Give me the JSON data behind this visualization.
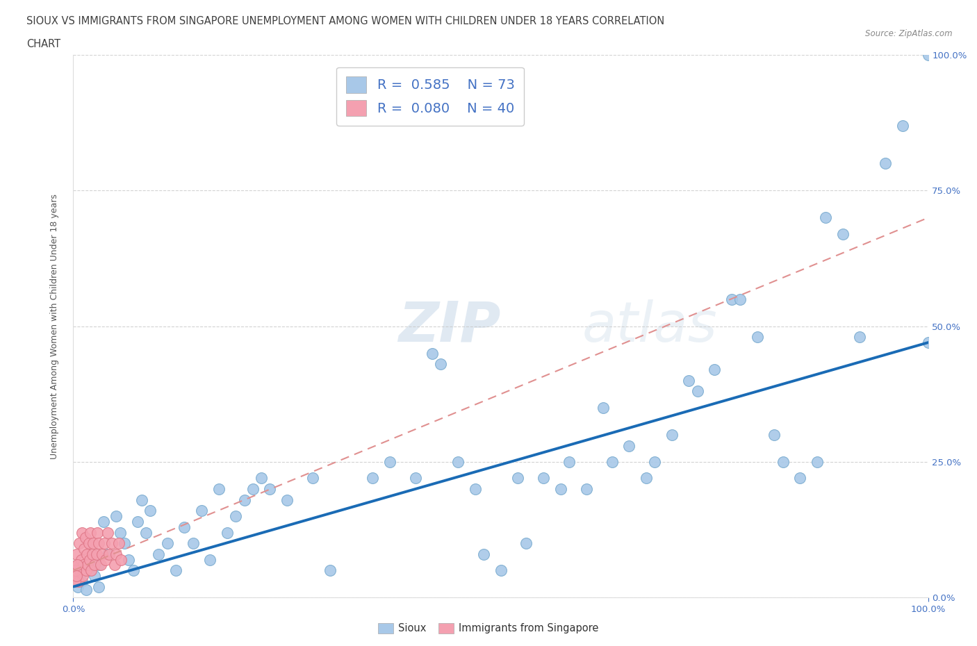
{
  "title_line1": "SIOUX VS IMMIGRANTS FROM SINGAPORE UNEMPLOYMENT AMONG WOMEN WITH CHILDREN UNDER 18 YEARS CORRELATION",
  "title_line2": "CHART",
  "source_text": "Source: ZipAtlas.com",
  "ylabel": "Unemployment Among Women with Children Under 18 years",
  "watermark_zip": "ZIP",
  "watermark_atlas": "atlas",
  "legend_labels": [
    "Sioux",
    "Immigrants from Singapore"
  ],
  "R_sioux": 0.585,
  "N_sioux": 73,
  "R_singapore": 0.08,
  "N_singapore": 40,
  "sioux_color": "#a8c8e8",
  "singapore_color": "#f4a0b0",
  "sioux_line_color": "#1a6bb5",
  "singapore_line_color": "#d4708080",
  "background_color": "#ffffff",
  "grid_color": "#c8c8c8",
  "axis_label_color": "#4472c4",
  "title_color": "#404040",
  "sioux_x": [
    0.5,
    1.0,
    1.5,
    2.0,
    2.5,
    3.0,
    4.0,
    5.0,
    5.5,
    6.0,
    7.0,
    8.0,
    9.0,
    10.0,
    11.0,
    12.0,
    13.0,
    14.0,
    15.0,
    16.0,
    17.0,
    18.0,
    20.0,
    21.0,
    22.0,
    23.0,
    25.0,
    28.0,
    30.0,
    35.0,
    37.0,
    40.0,
    42.0,
    43.0,
    45.0,
    47.0,
    48.0,
    50.0,
    52.0,
    53.0,
    55.0,
    57.0,
    58.0,
    60.0,
    62.0,
    63.0,
    65.0,
    67.0,
    68.0,
    70.0,
    72.0,
    73.0,
    75.0,
    77.0,
    78.0,
    80.0,
    82.0,
    83.0,
    85.0,
    87.0,
    88.0,
    90.0,
    92.0,
    95.0,
    97.0,
    100.0,
    3.0,
    3.5,
    6.5,
    7.5,
    8.5,
    19.0,
    100.0
  ],
  "sioux_y": [
    2.0,
    3.0,
    1.5,
    5.0,
    4.0,
    2.0,
    8.0,
    15.0,
    12.0,
    10.0,
    5.0,
    18.0,
    16.0,
    8.0,
    10.0,
    5.0,
    13.0,
    10.0,
    16.0,
    7.0,
    20.0,
    12.0,
    18.0,
    20.0,
    22.0,
    20.0,
    18.0,
    22.0,
    5.0,
    22.0,
    25.0,
    22.0,
    45.0,
    43.0,
    25.0,
    20.0,
    8.0,
    5.0,
    22.0,
    10.0,
    22.0,
    20.0,
    25.0,
    20.0,
    35.0,
    25.0,
    28.0,
    22.0,
    25.0,
    30.0,
    40.0,
    38.0,
    42.0,
    55.0,
    55.0,
    48.0,
    30.0,
    25.0,
    22.0,
    25.0,
    70.0,
    67.0,
    48.0,
    80.0,
    87.0,
    47.0,
    6.0,
    14.0,
    7.0,
    14.0,
    12.0,
    15.0,
    100.0
  ],
  "singapore_x": [
    0.3,
    0.4,
    0.5,
    0.6,
    0.7,
    0.8,
    0.9,
    1.0,
    1.1,
    1.2,
    1.3,
    1.4,
    1.5,
    1.6,
    1.7,
    1.8,
    1.9,
    2.0,
    2.1,
    2.2,
    2.3,
    2.5,
    2.7,
    2.8,
    3.0,
    3.2,
    3.4,
    3.6,
    3.8,
    4.0,
    4.2,
    4.5,
    4.8,
    5.0,
    5.3,
    5.6,
    0.2,
    0.25,
    0.35,
    0.45
  ],
  "singapore_y": [
    4.0,
    8.0,
    6.0,
    3.0,
    10.0,
    5.0,
    7.0,
    12.0,
    4.0,
    6.0,
    9.0,
    11.0,
    5.0,
    8.0,
    6.0,
    10.0,
    7.0,
    12.0,
    5.0,
    8.0,
    10.0,
    6.0,
    8.0,
    12.0,
    10.0,
    6.0,
    8.0,
    10.0,
    7.0,
    12.0,
    8.0,
    10.0,
    6.0,
    8.0,
    10.0,
    7.0,
    3.0,
    5.0,
    4.0,
    6.0
  ],
  "xlim": [
    0,
    100
  ],
  "ylim": [
    0,
    100
  ],
  "yticks": [
    0,
    25,
    50,
    75,
    100
  ],
  "yticklabels": [
    "0.0%",
    "25.0%",
    "50.0%",
    "75.0%",
    "100.0%"
  ],
  "xtick_positions": [
    0,
    100
  ],
  "xtick_labels": [
    "0.0%",
    "100.0%"
  ]
}
